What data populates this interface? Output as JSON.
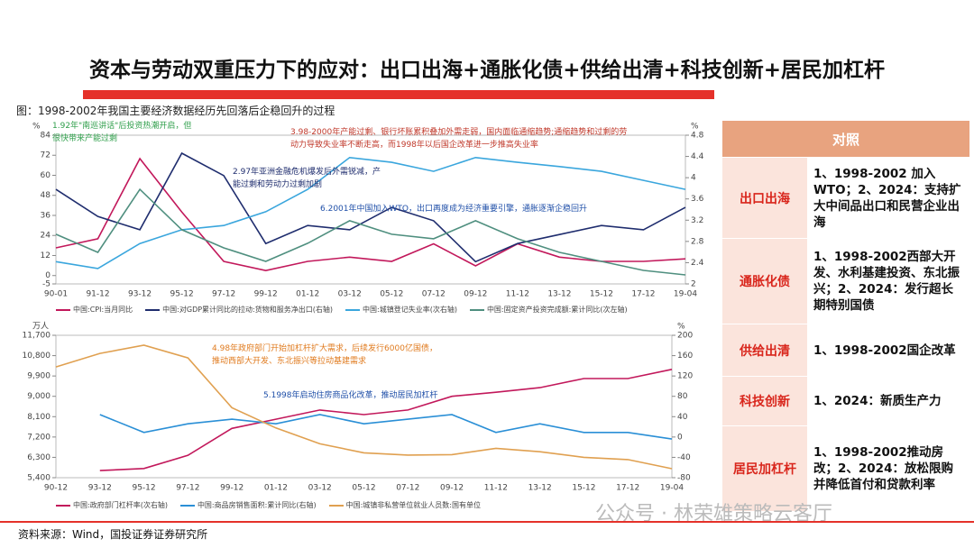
{
  "title": "资本与劳动双重压力下的应对：出口出海+通胀化债+供给出清+科技创新+居民加杠杆",
  "caption": "图：1998-2002年我国主要经济数据经历先回落后企稳回升的过程",
  "chart_data": [
    {
      "type": "line",
      "ylabel": "%",
      "y2label": "%",
      "categories": [
        "90-01",
        "91-12",
        "93-12",
        "95-12",
        "97-12",
        "99-12",
        "01-12",
        "03-12",
        "05-12",
        "07-12",
        "09-12",
        "11-12",
        "13-12",
        "15-12",
        "17-12",
        "19-04"
      ],
      "ylim": [
        -5,
        84
      ],
      "yticks": [
        -5,
        0,
        12,
        24,
        36,
        48,
        60,
        72,
        84
      ],
      "y2lim": [
        2,
        4.8
      ],
      "y2ticks": [
        2,
        2.4,
        2.8,
        3.2,
        3.6,
        4,
        4.4,
        4.8
      ],
      "series": [
        {
          "name": "中国:CPI:当月同比",
          "color": "#c2185b",
          "values": [
            16.6,
            22,
            70,
            38,
            8.5,
            3,
            8.5,
            11,
            8.5,
            19,
            5.8,
            19,
            11,
            8.5,
            8.5,
            10
          ]
        },
        {
          "name": "中国:对GDP累计同比的拉动:货物和服务净出口(右轴)",
          "color": "#1f2d6e",
          "axis": "y2",
          "values": [
            3.78,
            3.27,
            3.02,
            4.46,
            4.04,
            2.76,
            3.1,
            3.02,
            3.44,
            3.19,
            2.42,
            2.76,
            2.93,
            3.1,
            3.02,
            3.44
          ]
        },
        {
          "name": "中国:城镇登记失业率(次右轴)",
          "color": "#3aa6dd",
          "axis": "y2",
          "values": [
            2.42,
            2.29,
            2.76,
            3.02,
            3.1,
            3.36,
            3.78,
            4.38,
            4.29,
            4.12,
            4.38,
            4.29,
            4.21,
            4.12,
            3.95,
            3.78
          ]
        },
        {
          "name": "中国:固定资产投资完成额:累计同比(次左轴)",
          "color": "#4f8f7f",
          "values": [
            24.7,
            13.9,
            51.6,
            27.4,
            16.6,
            8.5,
            19.3,
            32.8,
            24.7,
            22,
            32.8,
            22,
            13.9,
            8.5,
            3.1,
            0.4
          ]
        }
      ],
      "annotations": [
        {
          "text": "1.92年\"南巡讲话\"后投资热潮开启，但很快带来产能过剩",
          "color": "#2e9e4a"
        },
        {
          "text": "3.98-2000年产能过剩、银行坏账累积叠加外需走弱，国内面临通缩趋势;通缩趋势和过剩的劳动力导致失业率不断走高，而1998年以后国企改革进一步推高失业率",
          "color": "#c0392b"
        },
        {
          "text": "2.97年亚洲金融危机爆发后外需锐减，产能过剩和劳动力过剩加剧",
          "color": "#1f2d6e"
        },
        {
          "text": "6.2001年中国加入WTO，出口再度成为经济重要引擎，通胀逐渐企稳回升",
          "color": "#1f4fa8"
        }
      ]
    },
    {
      "type": "line",
      "ylabel": "万人",
      "y2label": "%",
      "categories": [
        "90-12",
        "93-12",
        "95-12",
        "97-12",
        "99-12",
        "01-12",
        "03-12",
        "05-12",
        "07-12",
        "09-12",
        "11-12",
        "13-12",
        "15-12",
        "17-12",
        "19-04"
      ],
      "ylim": [
        5400,
        11700
      ],
      "yticks": [
        {
          "value": 5400,
          "label": "5,400"
        },
        {
          "value": 6300,
          "label": "6,300"
        },
        {
          "value": 7200,
          "label": "7,200"
        },
        {
          "value": 8100,
          "label": "8,100"
        },
        {
          "value": 9000,
          "label": "9,000"
        },
        {
          "value": 9900,
          "label": "9,900"
        },
        {
          "value": 10800,
          "label": "10,800"
        },
        {
          "value": 11700,
          "label": "11,700"
        }
      ],
      "y2lim": [
        -80,
        200
      ],
      "y2ticks": [
        -80,
        -40,
        0,
        40,
        80,
        120,
        160,
        200
      ],
      "series": [
        {
          "name": "中国:政府部门杠杆率(次右轴)",
          "color": "#c2185b",
          "axis": "y2",
          "values": [
            null,
            -66,
            -62,
            -36,
            17,
            35,
            53,
            44,
            53,
            80,
            88,
            97,
            115,
            115,
            133
          ]
        },
        {
          "name": "中国:商品房销售面积:累计同比(右轴)",
          "color": "#2a8fd6",
          "axis": "y2",
          "values": [
            null,
            44,
            9,
            26,
            35,
            26,
            44,
            26,
            35,
            44,
            9,
            26,
            9,
            9,
            -4
          ]
        },
        {
          "name": "中国:城镇非私营单位就业人员数:国有单位",
          "color": "#e0a050",
          "values": [
            10300,
            10900,
            11260,
            10700,
            8500,
            7600,
            6900,
            6500,
            6400,
            6420,
            6700,
            6550,
            6300,
            6200,
            5800
          ]
        }
      ],
      "annotations": [
        {
          "text": "4.98年政府部门开始加杠杆扩大需求，后续发行6000亿国债，推动西部大开发、东北振兴等拉动基建需求",
          "color": "#e07b1f"
        },
        {
          "text": "5.1998年启动住房商品化改革，推动居民加杠杆",
          "color": "#1f4fa8"
        }
      ]
    }
  ],
  "table": {
    "header": "对照",
    "rows": [
      [
        "出口出海",
        "1、1998-2002 加入WTO；2、2024：支持扩大中间品出口和民营企业出海"
      ],
      [
        "通胀化债",
        "1、1998-2002西部大开发、水利基建投资、东北振兴；2、2024：发行超长期特别国债"
      ],
      [
        "供给出清",
        "1、1998-2002国企改革"
      ],
      [
        "科技创新",
        "1、2024：新质生产力"
      ],
      [
        "居民加杠杆",
        "1、1998-2002推动房改；2、2024：放松限购并降低首付和贷款利率"
      ]
    ]
  },
  "source": "资料来源：Wind，国投证券证券研究所",
  "watermark": "公众号 · 林荣雄策略云客厅"
}
